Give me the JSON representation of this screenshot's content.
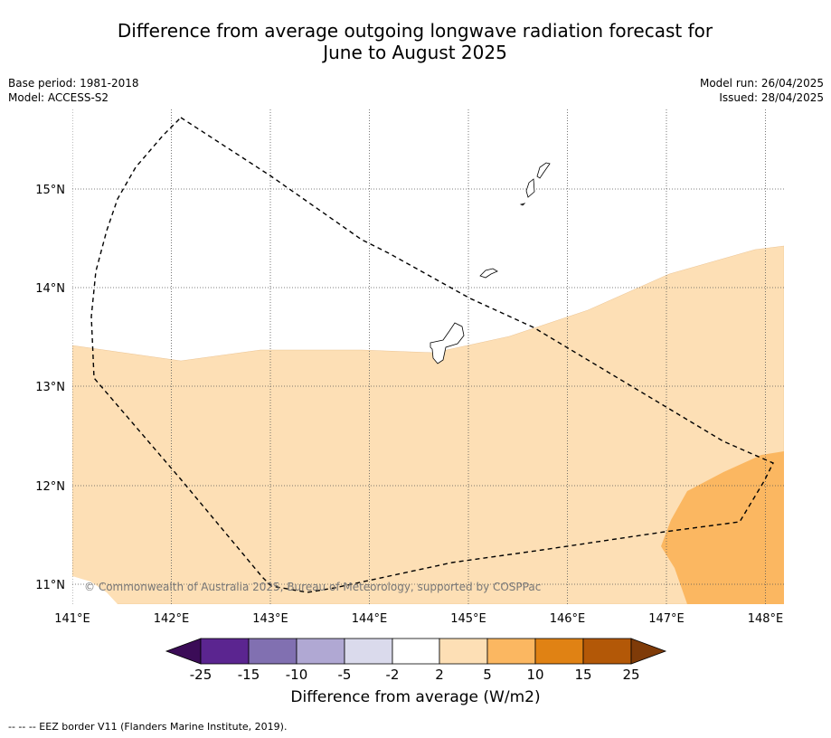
{
  "title": {
    "line1": "Difference from average outgoing longwave radiation forecast for",
    "line2": "June to August 2025"
  },
  "meta": {
    "base_period": "Base period: 1981-2018",
    "model": "Model: ACCESS-S2",
    "model_run": "Model run: 26/04/2025",
    "issued": "Issued: 28/04/2025"
  },
  "map": {
    "lon_ticks": [
      "141°E",
      "142°E",
      "143°E",
      "144°E",
      "145°E",
      "146°E",
      "147°E",
      "148°E"
    ],
    "lat_ticks": [
      "15°N",
      "14°N",
      "13°N",
      "12°N",
      "11°N"
    ],
    "copyright": "© Commonwealth of Australia 2025, Bureau of Meteorology, supported by COSPPac",
    "colors": {
      "cat_2_5": "#fddfb5",
      "cat_5_10": "#fbb761",
      "eez_border": "#000000",
      "coast": "#000000"
    }
  },
  "colorbar": {
    "title": "Difference from average (W/m2)",
    "labels": [
      "-25",
      "-15",
      "-10",
      "-5",
      "-2",
      "2",
      "5",
      "10",
      "15",
      "25"
    ],
    "colors": [
      "#3b0c57",
      "#5b2590",
      "#8170b1",
      "#b0a8d3",
      "#dadaec",
      "#ffffff",
      "#fddfb5",
      "#fbb761",
      "#e08214",
      "#b35807",
      "#7f3b08"
    ]
  },
  "footnote": "--  --  -- EEZ border V11 (Flanders Marine Institute, 2019)."
}
